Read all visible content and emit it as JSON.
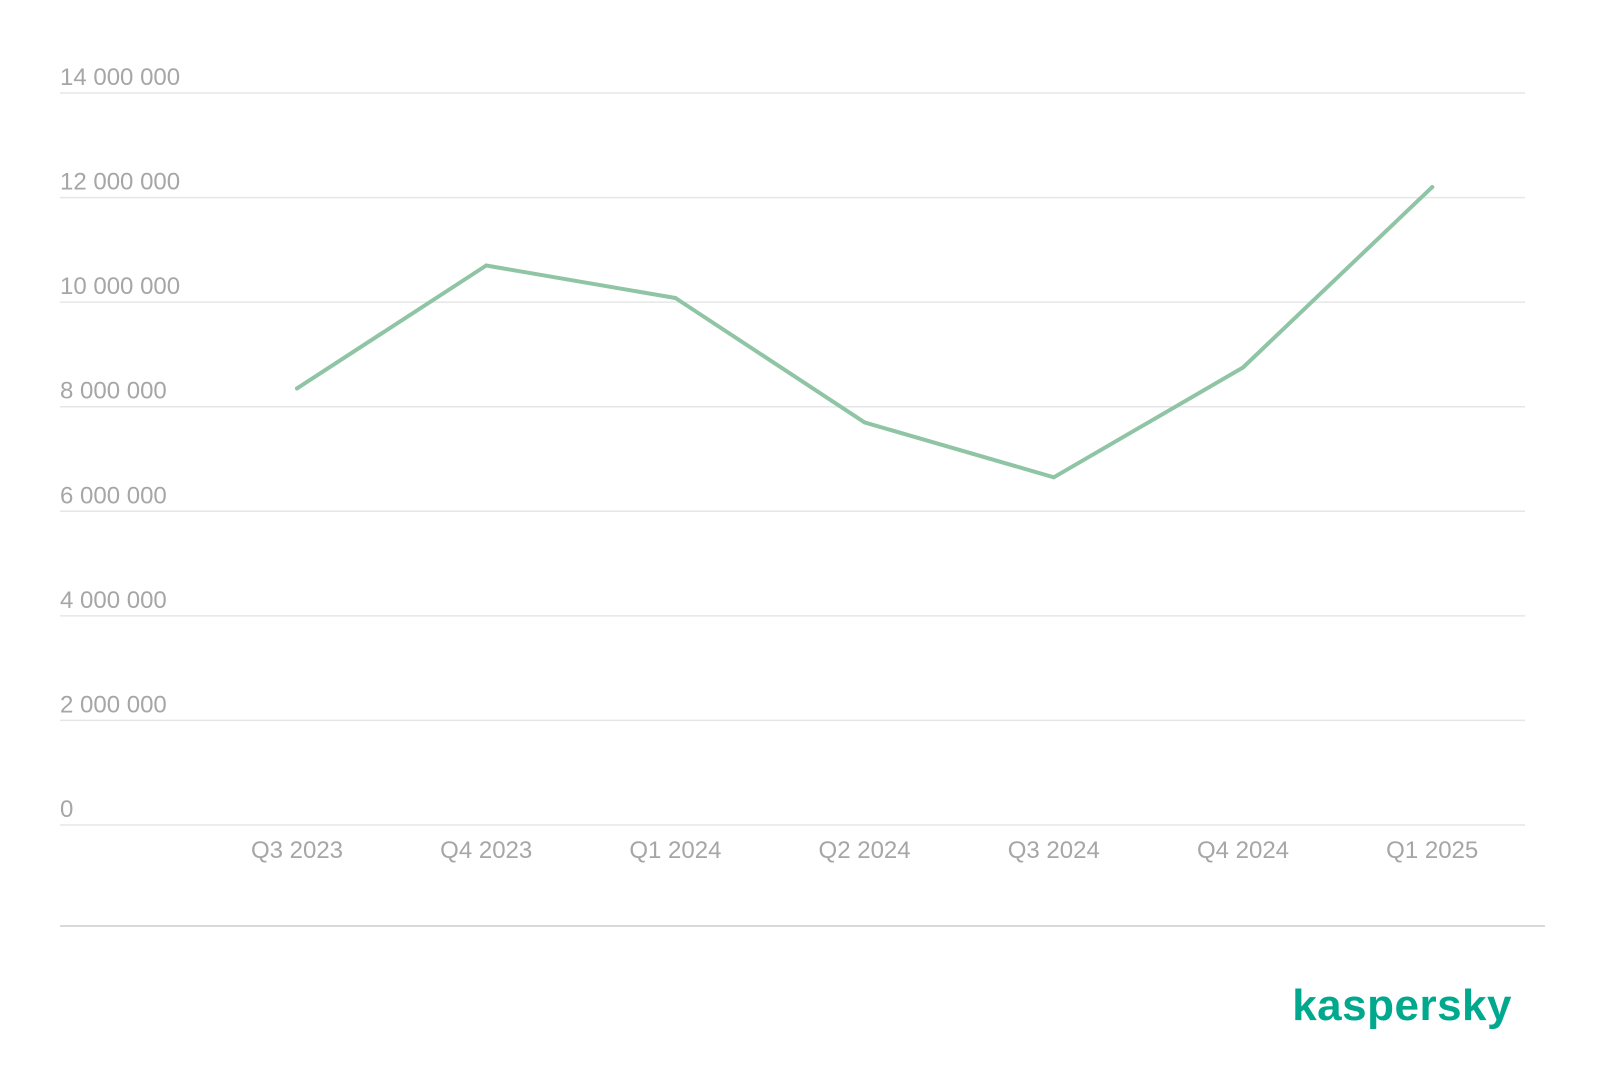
{
  "brand": {
    "name": "kaspersky",
    "color": "#00a88e"
  },
  "colors": {
    "line": "#8fc4a5",
    "grid": "#e6e6e6",
    "tick_text": "#a6a6a6",
    "separator": "#d9d9d9"
  },
  "chart_data": {
    "type": "line",
    "title": "",
    "xlabel": "",
    "ylabel": "",
    "categories": [
      "Q3 2023",
      "Q4 2023",
      "Q1 2024",
      "Q2 2024",
      "Q3 2024",
      "Q4 2024",
      "Q1 2025"
    ],
    "series": [
      {
        "values": [
          8350000,
          10700000,
          10080000,
          7700000,
          6650000,
          8750000,
          12200000
        ]
      }
    ],
    "ylim": [
      0,
      14000000
    ],
    "yticks": [
      0,
      2000000,
      4000000,
      6000000,
      8000000,
      10000000,
      12000000,
      14000000
    ],
    "ytick_labels": [
      "0",
      "2 000 000",
      "4 000 000",
      "6 000 000",
      "8 000 000",
      "10 000 000",
      "12 000 000",
      "14 000 000"
    ],
    "grid": true,
    "legend": "none"
  }
}
